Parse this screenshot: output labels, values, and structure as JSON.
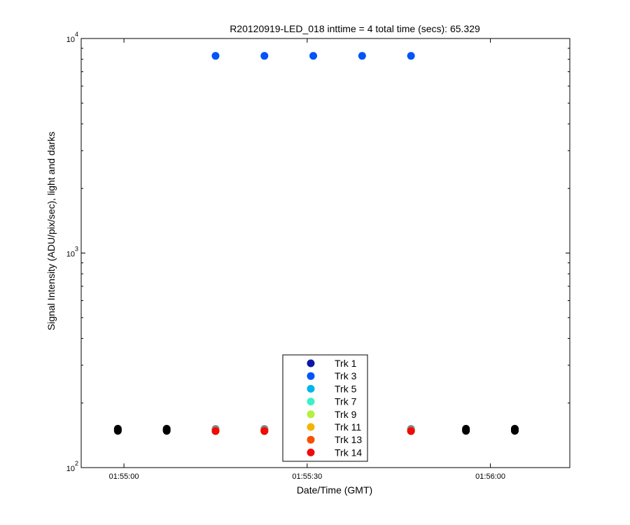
{
  "chart_data": {
    "type": "scatter",
    "title": "R20120919-LED_018 inttime = 4 total time (secs): 65.329",
    "xlabel": "Date/Time (GMT)",
    "ylabel": "Signal Intensity (ADU/pix/sec), light and darks",
    "y_scale": "log",
    "ylim": [
      100,
      10000
    ],
    "xlim": [
      "01:54:53",
      "01:56:13"
    ],
    "x_ticks": [
      "01:55:00",
      "01:55:30",
      "01:56:00"
    ],
    "y_ticks": [
      {
        "base": "10",
        "exp": "2"
      },
      {
        "base": "10",
        "exp": "3"
      },
      {
        "base": "10",
        "exp": "4"
      }
    ],
    "legend_position": "bottom-center",
    "series": [
      {
        "name": "Trk 1",
        "color": "#0a18a8",
        "points": [
          [
            "01:55:15",
            151
          ],
          [
            "01:55:23",
            151
          ],
          [
            "01:55:47",
            151
          ]
        ]
      },
      {
        "name": "Trk 3",
        "color": "#0055f5",
        "points": [
          [
            "01:55:15",
            8300
          ],
          [
            "01:55:23",
            8300
          ],
          [
            "01:55:31",
            8300
          ],
          [
            "01:55:39",
            8300
          ],
          [
            "01:55:47",
            8300
          ]
        ]
      },
      {
        "name": "Trk 5",
        "color": "#00b4f0",
        "points": [
          [
            "01:55:15",
            150
          ],
          [
            "01:55:23",
            150
          ],
          [
            "01:55:47",
            150
          ]
        ]
      },
      {
        "name": "Trk 7",
        "color": "#3cf0c8",
        "points": [
          [
            "01:55:15",
            150
          ],
          [
            "01:55:23",
            150
          ],
          [
            "01:55:47",
            150
          ]
        ]
      },
      {
        "name": "Trk 9",
        "color": "#b4f03c",
        "points": [
          [
            "01:55:15",
            149
          ],
          [
            "01:55:23",
            149
          ],
          [
            "01:55:47",
            149
          ]
        ]
      },
      {
        "name": "Trk 11",
        "color": "#f5b400",
        "points": [
          [
            "01:55:15",
            149
          ],
          [
            "01:55:23",
            149
          ],
          [
            "01:55:47",
            149
          ]
        ]
      },
      {
        "name": "Trk 13",
        "color": "#f55000",
        "points": [
          [
            "01:55:15",
            149
          ],
          [
            "01:55:23",
            149
          ],
          [
            "01:55:47",
            149
          ]
        ]
      },
      {
        "name": "Trk 14",
        "color": "#f00a0a",
        "points": [
          [
            "01:55:15",
            148
          ],
          [
            "01:55:23",
            148
          ],
          [
            "01:55:47",
            148
          ]
        ]
      }
    ],
    "darks": {
      "color": "#000000",
      "points": [
        [
          "01:54:59",
          150
        ],
        [
          "01:55:07",
          150
        ],
        [
          "01:55:56",
          150
        ],
        [
          "01:56:04",
          150
        ]
      ]
    }
  }
}
